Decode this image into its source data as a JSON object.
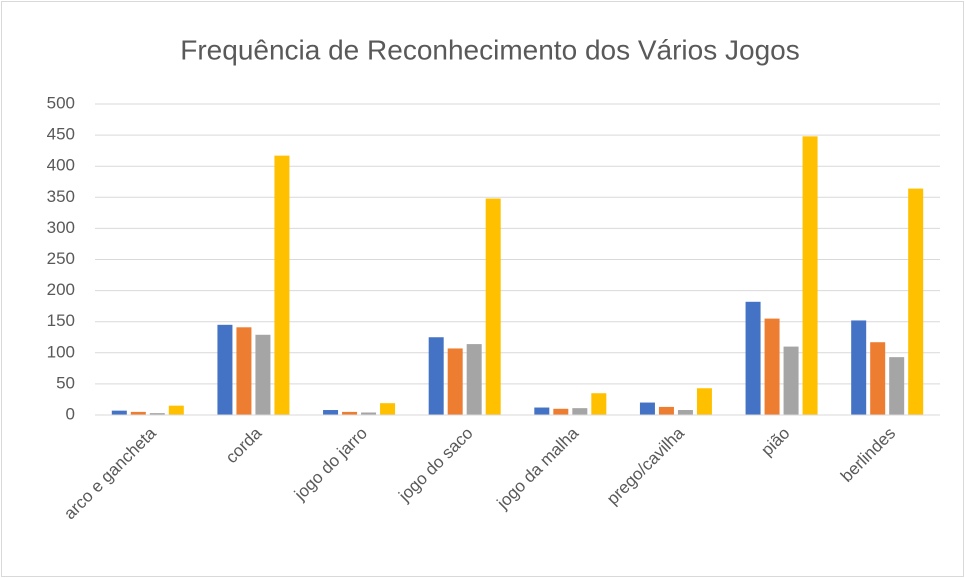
{
  "chart_data": {
    "type": "bar",
    "title": "Frequência de Reconhecimento dos Vários Jogos",
    "categories": [
      "arco e gancheta",
      "corda",
      "jogo do jarro",
      "jogo do saco",
      "jogo da malha",
      "prego/cavilha",
      "pião",
      "berlindes"
    ],
    "series": [
      {
        "color": "#4472c4",
        "values": [
          7,
          145,
          8,
          125,
          12,
          20,
          182,
          152
        ]
      },
      {
        "color": "#ed7d31",
        "values": [
          5,
          141,
          5,
          107,
          10,
          13,
          155,
          117
        ]
      },
      {
        "color": "#a5a5a5",
        "values": [
          3,
          129,
          4,
          114,
          11,
          8,
          110,
          93
        ]
      },
      {
        "color": "#ffc000",
        "values": [
          15,
          417,
          19,
          348,
          35,
          43,
          448,
          364
        ]
      }
    ],
    "ylim": [
      0,
      500
    ],
    "yticks": [
      0,
      50,
      100,
      150,
      200,
      250,
      300,
      350,
      400,
      450,
      500
    ],
    "grid": true
  }
}
